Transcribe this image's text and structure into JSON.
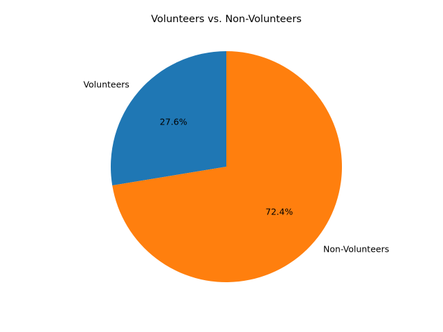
{
  "chart_data": {
    "type": "pie",
    "title": "Volunteers vs. Non-Volunteers",
    "start_angle_deg": 90,
    "direction": "counterclockwise",
    "slices": [
      {
        "label": "Volunteers",
        "value": 27.6,
        "pct_text": "27.6%",
        "color": "#1f77b4"
      },
      {
        "label": "Non-Volunteers",
        "value": 72.4,
        "pct_text": "72.4%",
        "color": "#ff7f0e"
      }
    ]
  }
}
